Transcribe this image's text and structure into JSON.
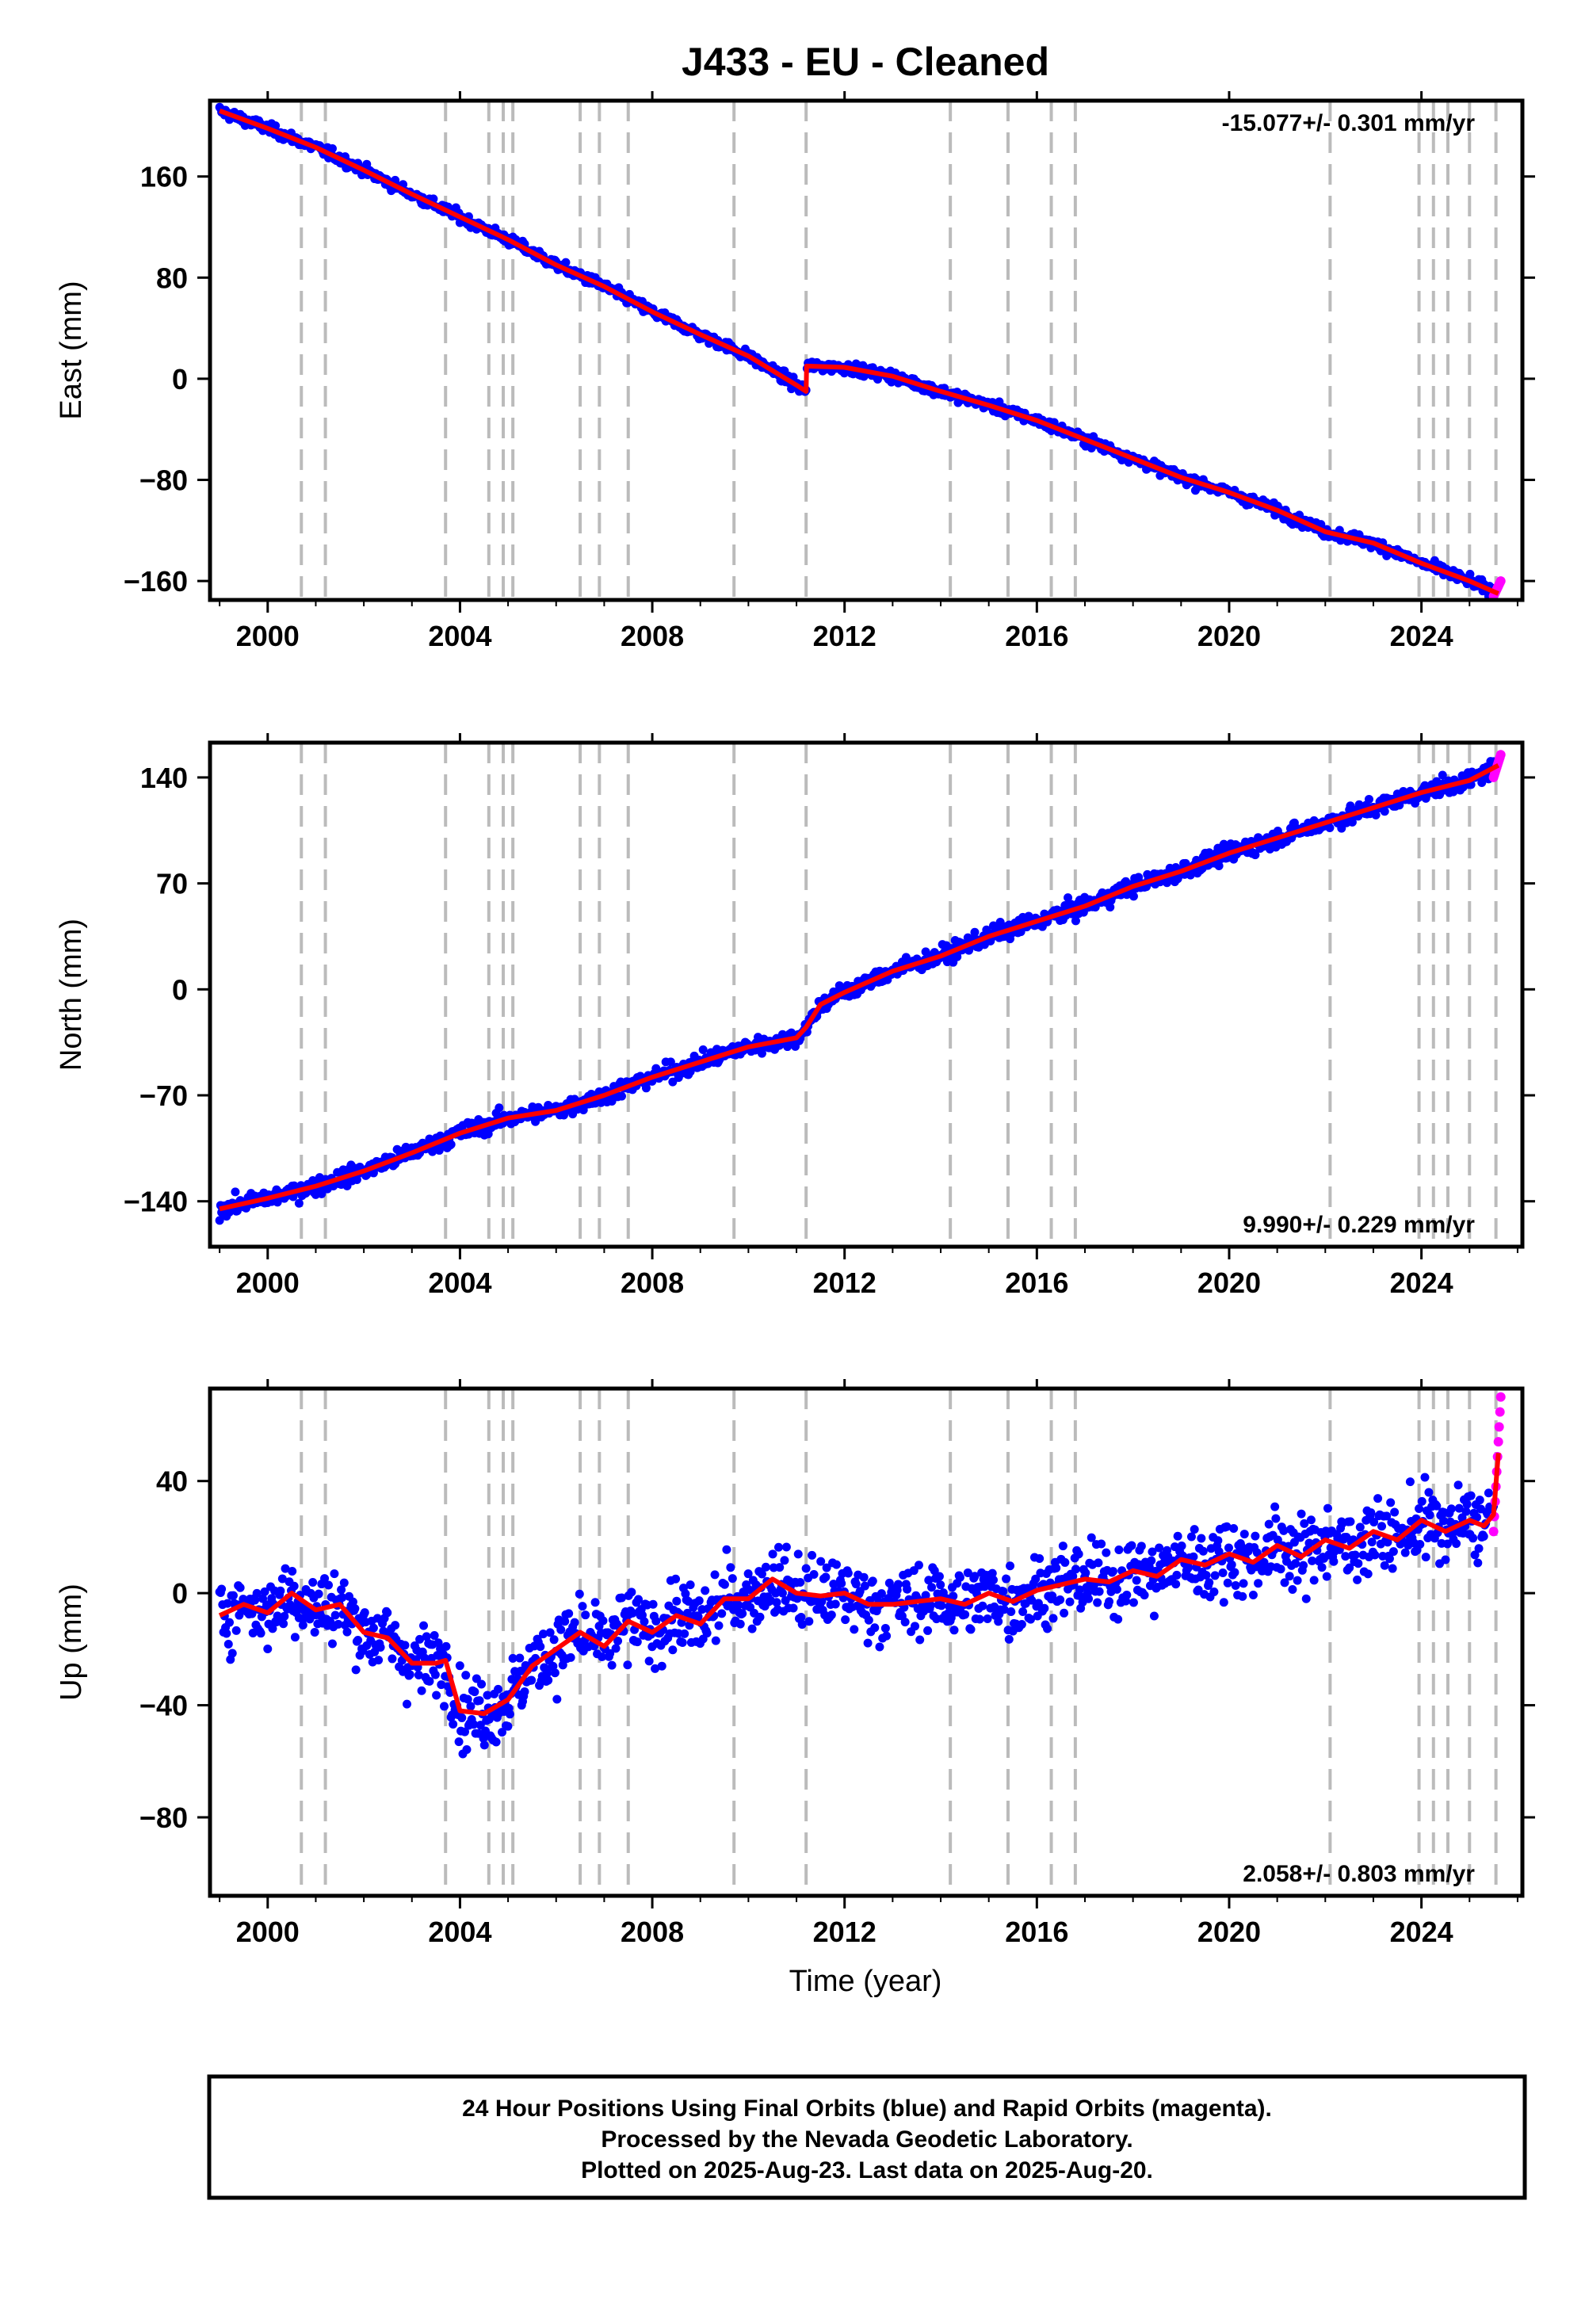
{
  "title": "J433  - EU - Cleaned",
  "colors": {
    "final": "#0000ff",
    "rapid": "#ff00ff",
    "model": "#ff0000",
    "gap": "#bbbbbb",
    "frame": "#000000"
  },
  "xlabel": "Time (year)",
  "footer": {
    "line1": "24 Hour Positions Using Final Orbits (blue) and Rapid Orbits (magenta).",
    "line2": "Processed by the Nevada Geodetic Laboratory.",
    "line3": "Plotted on 2025-Aug-23. Last data on 2025-Aug-20."
  },
  "chart_data": [
    {
      "type": "scatter",
      "ylabel": "East (mm)",
      "rate": "-15.077+/- 0.301 mm/yr",
      "rate_position": "top-right",
      "xlim": [
        1998.8,
        2026.1
      ],
      "ylim": [
        -175,
        220
      ],
      "xticks": [
        2000,
        2004,
        2008,
        2012,
        2016,
        2020,
        2024
      ],
      "xtick_labels": [
        "2000",
        "2004",
        "2008",
        "2012",
        "2016",
        "2020",
        "2024"
      ],
      "yticks": [
        160,
        80,
        0,
        -80,
        -160
      ],
      "ytick_labels": [
        "160",
        "80",
        "0",
        "−80",
        "−160"
      ],
      "event_lines": [
        2000.7,
        2001.2,
        2003.7,
        2004.6,
        2004.9,
        2005.1,
        2006.5,
        2006.9,
        2007.5,
        2009.7,
        2011.2,
        2014.2,
        2015.4,
        2016.3,
        2016.8,
        2022.1,
        2023.95,
        2024.25,
        2024.55,
        2025.0,
        2025.55
      ],
      "series": [
        {
          "kind": "model",
          "x": [
            1999.0,
            2000.0,
            2001.0,
            2002.0,
            2003.0,
            2004.0,
            2005.0,
            2006.0,
            2007.0,
            2008.0,
            2009.0,
            2010.0,
            2011.0,
            2011.2,
            2011.21,
            2012.0,
            2013.0,
            2014.0,
            2015.0,
            2016.0,
            2017.0,
            2018.0,
            2019.0,
            2020.0,
            2021.0,
            2022.0,
            2023.0,
            2024.0,
            2025.0,
            2025.6
          ],
          "y": [
            212,
            198,
            183,
            165,
            146,
            128,
            110,
            90,
            73,
            53,
            35,
            18,
            -5,
            -10,
            10,
            9,
            2,
            -10,
            -21,
            -33,
            -48,
            -63,
            -78,
            -90,
            -104,
            -121,
            -130,
            -146,
            -160,
            -170
          ]
        },
        {
          "kind": "final",
          "x_start": 1999.0,
          "x_end": 2025.5,
          "scatter_mm": 3
        },
        {
          "kind": "rapid",
          "x_start": 2025.5,
          "x_end": 2025.65,
          "y_range": [
            -172,
            -160
          ]
        }
      ]
    },
    {
      "type": "scatter",
      "ylabel": "North (mm)",
      "rate": "9.990+/- 0.229 mm/yr",
      "rate_position": "bottom-right",
      "xlim": [
        1998.8,
        2026.1
      ],
      "ylim": [
        -170,
        163
      ],
      "xticks": [
        2000,
        2004,
        2008,
        2012,
        2016,
        2020,
        2024
      ],
      "xtick_labels": [
        "2000",
        "2004",
        "2008",
        "2012",
        "2016",
        "2020",
        "2024"
      ],
      "yticks": [
        140,
        70,
        0,
        -70,
        -140
      ],
      "ytick_labels": [
        "140",
        "70",
        "0",
        "−70",
        "−140"
      ],
      "event_lines": [
        2000.7,
        2001.2,
        2003.7,
        2004.6,
        2004.9,
        2005.1,
        2006.5,
        2006.9,
        2007.5,
        2009.7,
        2011.2,
        2014.2,
        2015.4,
        2016.3,
        2016.8,
        2022.1,
        2023.95,
        2024.25,
        2024.55,
        2025.0,
        2025.55
      ],
      "series": [
        {
          "kind": "model",
          "x": [
            1999.0,
            2000.0,
            2001.0,
            2002.0,
            2003.0,
            2004.0,
            2005.0,
            2006.0,
            2007.0,
            2008.0,
            2009.0,
            2010.0,
            2011.0,
            2011.2,
            2011.5,
            2012.0,
            2013.0,
            2014.0,
            2015.0,
            2016.0,
            2017.0,
            2018.0,
            2019.0,
            2020.0,
            2021.0,
            2022.0,
            2023.0,
            2024.0,
            2025.0,
            2025.6
          ],
          "y": [
            -145,
            -138,
            -130,
            -120,
            -108,
            -95,
            -85,
            -80,
            -70,
            -58,
            -48,
            -38,
            -32,
            -25,
            -10,
            -2,
            12,
            22,
            35,
            45,
            55,
            68,
            78,
            90,
            100,
            110,
            120,
            130,
            138,
            148
          ]
        },
        {
          "kind": "final",
          "x_start": 1999.0,
          "x_end": 2025.5,
          "scatter_mm": 4
        },
        {
          "kind": "rapid",
          "x_start": 2025.5,
          "x_end": 2025.65,
          "y_range": [
            140,
            155
          ]
        }
      ]
    },
    {
      "type": "scatter",
      "ylabel": "Up (mm)",
      "rate": "2.058+/- 0.803 mm/yr",
      "rate_position": "bottom-right",
      "xlim": [
        1998.8,
        2026.1
      ],
      "ylim": [
        -108,
        73
      ],
      "xticks": [
        2000,
        2004,
        2008,
        2012,
        2016,
        2020,
        2024
      ],
      "xtick_labels": [
        "2000",
        "2004",
        "2008",
        "2012",
        "2016",
        "2020",
        "2024"
      ],
      "yticks": [
        40,
        0,
        -40,
        -80
      ],
      "ytick_labels": [
        "40",
        "0",
        "−40",
        "−80"
      ],
      "event_lines": [
        2000.7,
        2001.2,
        2003.7,
        2004.6,
        2004.9,
        2005.1,
        2006.5,
        2006.9,
        2007.5,
        2009.7,
        2011.2,
        2014.2,
        2015.4,
        2016.3,
        2016.8,
        2022.1,
        2023.95,
        2024.25,
        2024.55,
        2025.0,
        2025.55
      ],
      "series": [
        {
          "kind": "model",
          "x": [
            1999.0,
            1999.5,
            2000.0,
            2000.5,
            2001.0,
            2001.5,
            2002.0,
            2002.5,
            2003.0,
            2003.5,
            2003.7,
            2004.0,
            2004.5,
            2005.0,
            2005.5,
            2006.0,
            2006.5,
            2007.0,
            2007.5,
            2008.0,
            2008.5,
            2009.0,
            2009.5,
            2010.0,
            2010.5,
            2011.0,
            2011.5,
            2012.0,
            2012.5,
            2013.0,
            2013.5,
            2014.0,
            2014.5,
            2015.0,
            2015.5,
            2016.0,
            2016.5,
            2017.0,
            2017.5,
            2018.0,
            2018.5,
            2019.0,
            2019.5,
            2020.0,
            2020.5,
            2021.0,
            2021.5,
            2022.0,
            2022.5,
            2023.0,
            2023.5,
            2024.0,
            2024.5,
            2025.0,
            2025.3,
            2025.5,
            2025.6
          ],
          "y": [
            -8,
            -4,
            -7,
            0,
            -6,
            -4,
            -14,
            -16,
            -25,
            -25,
            -24,
            -42,
            -43,
            -38,
            -26,
            -20,
            -14,
            -19,
            -10,
            -14,
            -8,
            -11,
            -2,
            -2,
            5,
            0,
            -1,
            0,
            -4,
            -4,
            -3,
            -2,
            -4,
            0,
            -3,
            1,
            3,
            5,
            4,
            8,
            6,
            12,
            10,
            14,
            11,
            17,
            13,
            19,
            16,
            22,
            19,
            26,
            22,
            26,
            24,
            28,
            50
          ]
        },
        {
          "kind": "final",
          "x_start": 1999.0,
          "x_end": 2025.5,
          "scatter_mm": 9
        },
        {
          "kind": "rapid",
          "x_start": 2025.5,
          "x_end": 2025.65,
          "y_range": [
            22,
            70
          ]
        }
      ]
    }
  ]
}
